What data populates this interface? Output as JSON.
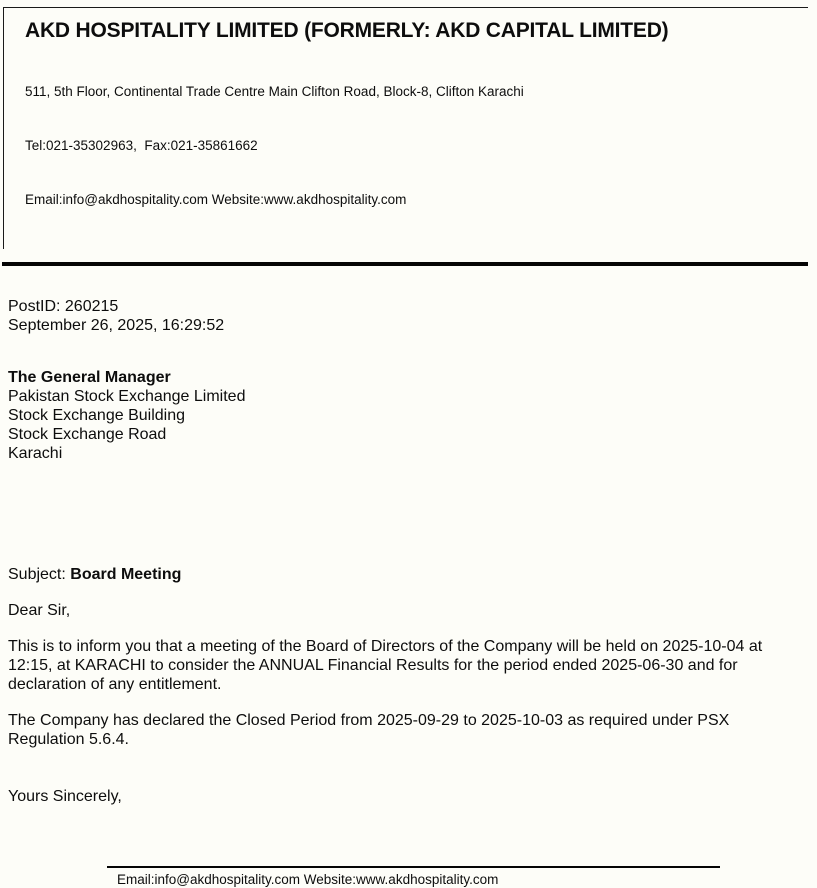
{
  "letterhead": {
    "company_name": "AKD HOSPITALITY LIMITED (FORMERLY: AKD CAPITAL LIMITED)",
    "address_line": "511, 5th Floor, Continental Trade Centre Main Clifton Road, Block-8, Clifton Karachi",
    "tel_fax_line": "Tel:021-35302963,  Fax:021-35861662",
    "email_web_line": "Email:info@akdhospitality.com Website:www.akdhospitality.com"
  },
  "meta": {
    "post_id": "PostID: 260215",
    "datetime": "September 26, 2025, 16:29:52"
  },
  "recipient": {
    "title": "The General Manager",
    "lines": [
      "Pakistan Stock Exchange Limited",
      "Stock Exchange Building",
      "Stock Exchange Road",
      "Karachi"
    ]
  },
  "letter": {
    "subject_label": "Subject: ",
    "subject": "Board Meeting",
    "salutation": "Dear Sir,",
    "paragraphs": [
      "This is to inform you that a meeting of the Board of Directors of the Company will be held on 2025-10-04 at 12:15, at KARACHI to consider the ANNUAL Financial Results for the period ended 2025-06-30 and for declaration of any entitlement.",
      "The Company has declared the Closed Period from 2025-09-29 to 2025-10-03 as required under PSX Regulation 5.6.4."
    ],
    "closing": "Yours Sincerely,"
  },
  "footer": {
    "email_web_line": "Email:info@akdhospitality.com Website:www.akdhospitality.com"
  },
  "colors": {
    "background": "#fdfdf8",
    "text": "#0d0d0d",
    "rule": "#050505"
  }
}
